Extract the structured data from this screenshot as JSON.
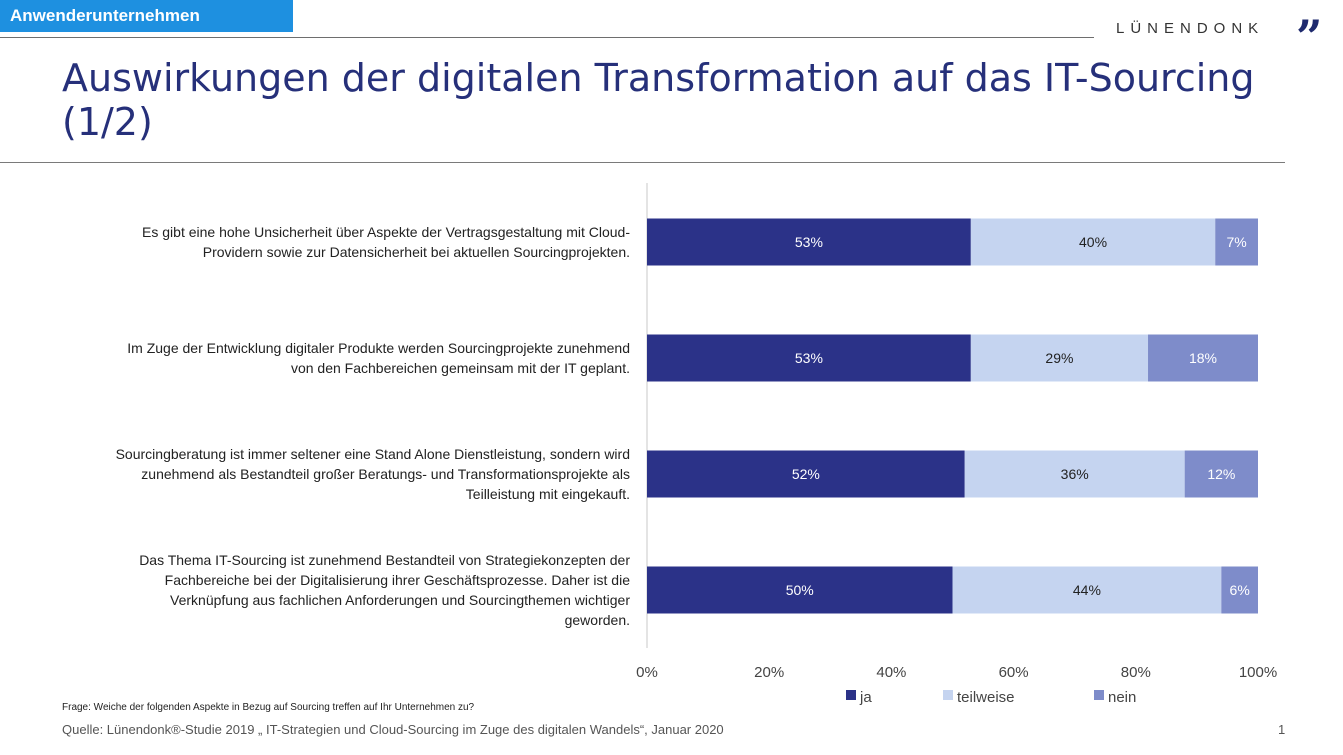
{
  "header": {
    "tag": "Anwenderunternehmen",
    "logo": "LÜNENDONK",
    "logo_mark": "”"
  },
  "title": "Auswirkungen der digitalen Transformation auf das IT-Sourcing (1/2)",
  "colors": {
    "ja": "#2b3288",
    "teilweise": "#c5d4f0",
    "nein": "#7e8cca"
  },
  "chart_data": {
    "type": "bar",
    "orientation": "horizontal",
    "stacked": true,
    "categories": [
      [
        "Es gibt eine hohe Unsicherheit über Aspekte der Vertragsgestaltung mit Cloud-",
        "Providern sowie zur Datensicherheit bei aktuellen Sourcingprojekten."
      ],
      [
        "Im Zuge der Entwicklung digitaler Produkte werden Sourcingprojekte zunehmend",
        "von den Fachbereichen gemeinsam mit der IT geplant."
      ],
      [
        "Sourcingberatung ist immer seltener eine Stand Alone Dienstleistung, sondern wird",
        "zunehmend als Bestandteil großer Beratungs- und Transformationsprojekte als",
        "Teilleistung mit eingekauft."
      ],
      [
        "Das Thema IT-Sourcing ist zunehmend Bestandteil von Strategiekonzepten der",
        "Fachbereiche bei der Digitalisierung ihrer Geschäftsprozesse. Daher ist die",
        "Verknüpfung aus fachlichen Anforderungen und Sourcingthemen wichtiger",
        "geworden."
      ]
    ],
    "series": [
      {
        "name": "ja",
        "values": [
          53,
          53,
          52,
          50
        ]
      },
      {
        "name": "teilweise",
        "values": [
          40,
          29,
          36,
          44
        ]
      },
      {
        "name": "nein",
        "values": [
          7,
          18,
          12,
          6
        ]
      }
    ],
    "xlim": [
      0,
      100
    ],
    "xticks": [
      "0%",
      "20%",
      "40%",
      "60%",
      "80%",
      "100%"
    ],
    "legend_position": "bottom"
  },
  "footer": {
    "question": "Frage: Weiche der folgenden Aspekte in Bezug auf Sourcing treffen auf Ihr Unternehmen zu?",
    "source": "Quelle: Lünendonk®-Studie 2019 „ IT-Strategien und Cloud-Sourcing im Zuge des digitalen Wandels“, Januar 2020",
    "page": "1"
  }
}
